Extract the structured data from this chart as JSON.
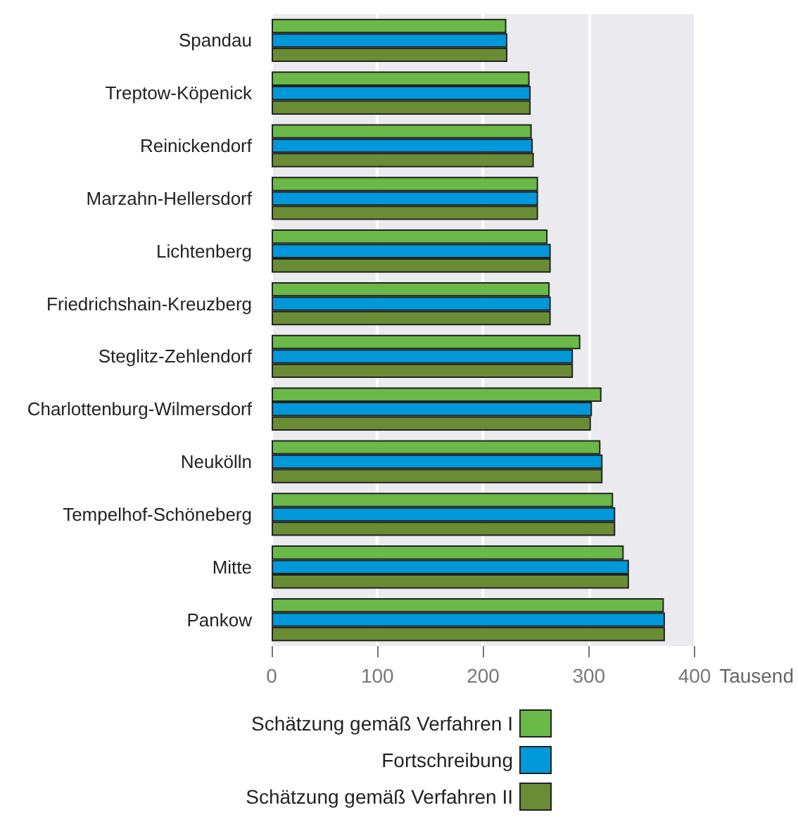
{
  "chart_data": {
    "type": "bar",
    "orientation": "horizontal",
    "xlabel": "Tausend",
    "categories": [
      "Spandau",
      "Treptow-Köpenick",
      "Reinickendorf",
      "Marzahn-Hellersdorf",
      "Lichtenberg",
      "Friedrichshain-Kreuzberg",
      "Steglitz-Zehlendorf",
      "Charlottenburg-Wilmersdorf",
      "Neukölln",
      "Tempelhof-Schöneberg",
      "Mitte",
      "Pankow"
    ],
    "series": [
      {
        "name": "Schätzung gemäß Verfahren I",
        "color": "#6ab847",
        "values": [
          222,
          244,
          246,
          252,
          261,
          263,
          292,
          312,
          311,
          323,
          333,
          371
        ]
      },
      {
        "name": "Fortschreibung",
        "color": "#0098d8",
        "values": [
          223,
          245,
          247,
          252,
          264,
          264,
          285,
          303,
          313,
          325,
          338,
          372
        ]
      },
      {
        "name": "Schätzung gemäß Verfahren II",
        "color": "#6a8c35",
        "values": [
          223,
          245,
          248,
          252,
          264,
          264,
          285,
          302,
          313,
          325,
          338,
          372
        ]
      }
    ],
    "xlim": [
      0,
      400
    ],
    "xticks": [
      0,
      100,
      200,
      300,
      400
    ],
    "grid": "x",
    "legend": "bottom"
  }
}
